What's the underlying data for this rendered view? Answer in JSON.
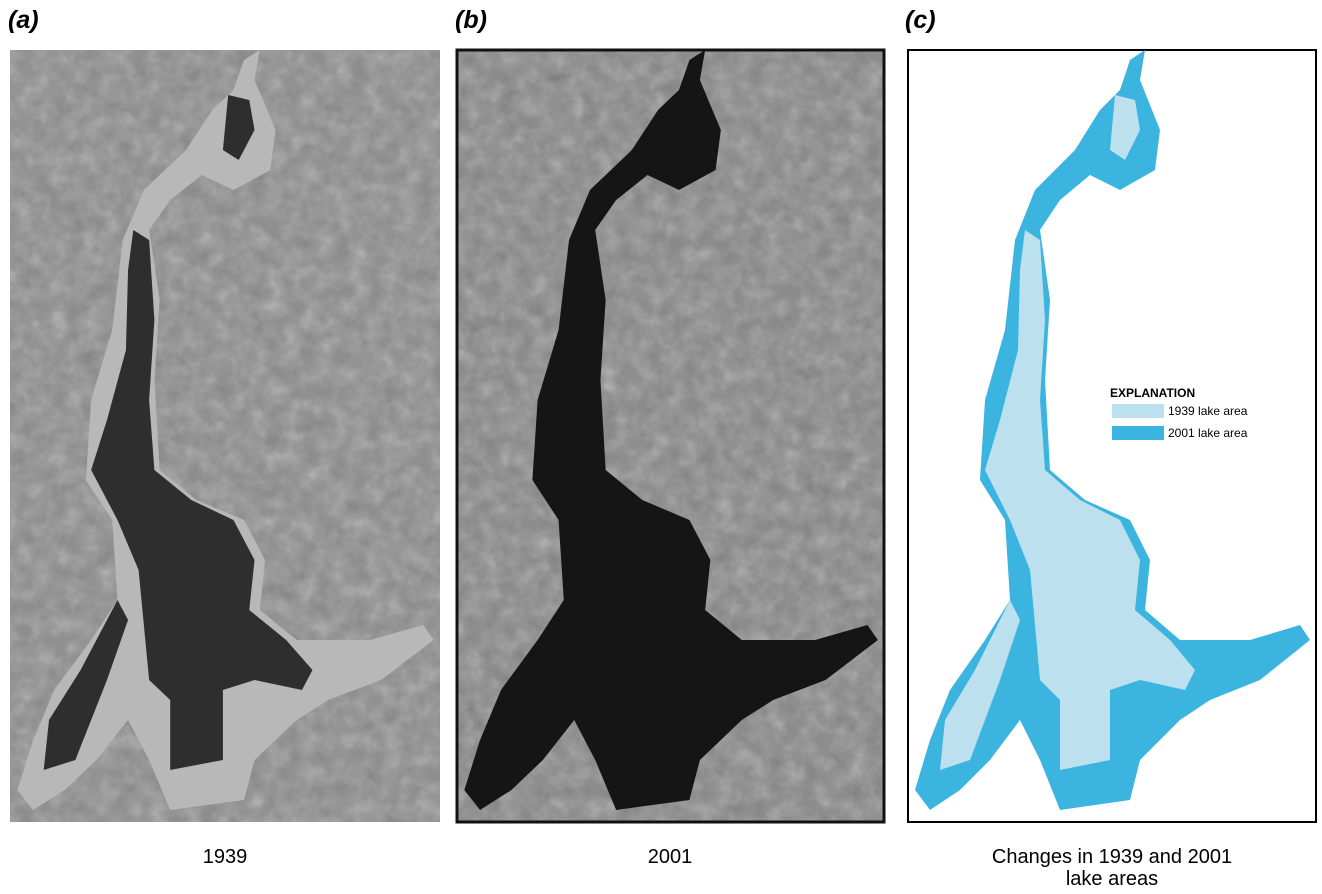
{
  "panels": [
    {
      "label": "(a)",
      "caption": "1939"
    },
    {
      "label": "(b)",
      "caption": "2001"
    },
    {
      "label": "(c)",
      "caption": "Changes in 1939 and 2001 lake areas"
    }
  ],
  "explanation": {
    "title": "EXPLANATION",
    "items": [
      "1939 lake area",
      "2001 lake area"
    ]
  }
}
